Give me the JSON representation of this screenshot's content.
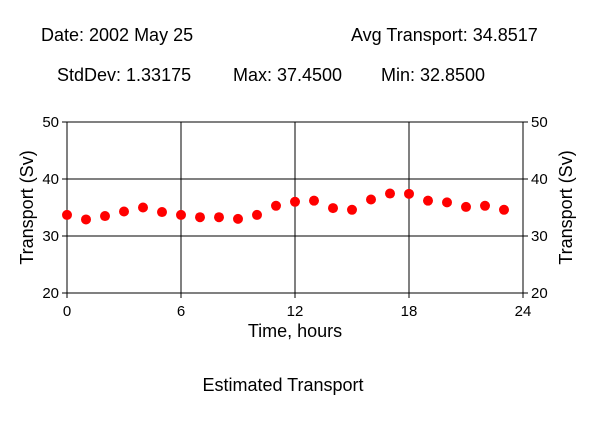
{
  "header": {
    "date": "Date: 2002 May 25",
    "avg": "Avg Transport: 34.8517",
    "stddev": "StdDev: 1.33175",
    "max": "Max: 37.4500",
    "min": "Min: 32.8500"
  },
  "footer": {
    "title": "Estimated Transport"
  },
  "chart_data": {
    "type": "scatter",
    "title": "",
    "xlabel": "Time, hours",
    "ylabel": "Transport (Sv)",
    "xlim": [
      0,
      24
    ],
    "ylim": [
      20,
      50
    ],
    "xticks": [
      0,
      6,
      12,
      18,
      24
    ],
    "yticks": [
      20,
      30,
      40,
      50
    ],
    "grid": true,
    "marker_color": "#ff0000",
    "series": [
      {
        "x": [
          0,
          1,
          2,
          3,
          4,
          5,
          6,
          7,
          8,
          9,
          10,
          11,
          12,
          13,
          14,
          15,
          16,
          17,
          18,
          19,
          20,
          21,
          22,
          23
        ],
        "y": [
          33.7,
          32.9,
          33.5,
          34.3,
          35.0,
          34.2,
          33.7,
          33.3,
          33.3,
          33.0,
          33.7,
          35.3,
          36.0,
          36.2,
          34.9,
          34.6,
          36.4,
          37.45,
          37.4,
          36.2,
          35.9,
          35.1,
          35.3,
          34.6
        ]
      }
    ]
  }
}
